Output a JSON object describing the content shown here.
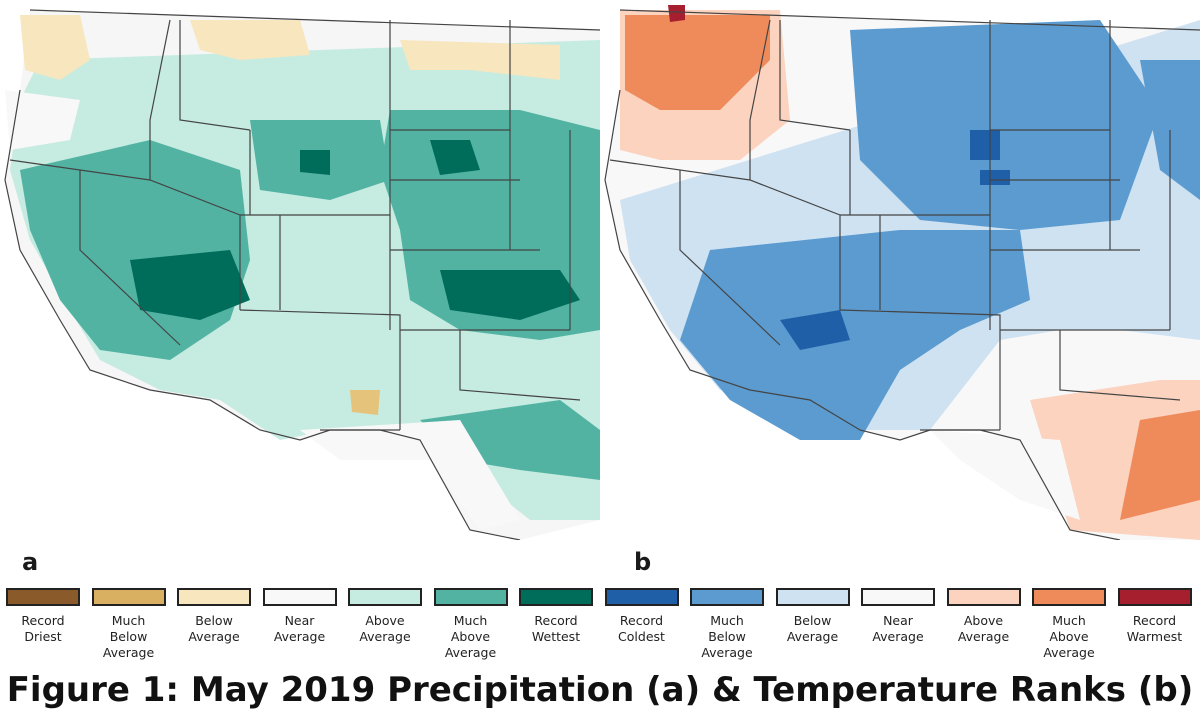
{
  "figure": {
    "caption": "Figure 1: May 2019 Precipitation (a) & Temperature Ranks (b)"
  },
  "panels": [
    {
      "id": "a",
      "label": "a"
    },
    {
      "id": "b",
      "label": "b"
    }
  ],
  "legend": {
    "precipitation": [
      {
        "label": "Record\nDriest",
        "color": "#8b5a2b"
      },
      {
        "label": "Much\nBelow\nAverage",
        "color": "#d9b062"
      },
      {
        "label": "Below\nAverage",
        "color": "#f7e6be"
      },
      {
        "label": "Near\nAverage",
        "color": "#f8f8f8"
      },
      {
        "label": "Above\nAverage",
        "color": "#c6ebe1"
      },
      {
        "label": "Much\nAbove\nAverage",
        "color": "#52b3a3"
      },
      {
        "label": "Record\nWettest",
        "color": "#006c5a"
      }
    ],
    "temperature": [
      {
        "label": "Record\nColdest",
        "color": "#1f5fa8"
      },
      {
        "label": "Much\nBelow\nAverage",
        "color": "#5b9bd0"
      },
      {
        "label": "Below\nAverage",
        "color": "#cfe2f2"
      },
      {
        "label": "Near\nAverage",
        "color": "#f8f8f8"
      },
      {
        "label": "Above\nAverage",
        "color": "#fbd3bf"
      },
      {
        "label": "Much\nAbove\nAverage",
        "color": "#ef8a5b"
      },
      {
        "label": "Record\nWarmest",
        "color": "#a61f2e"
      }
    ]
  }
}
